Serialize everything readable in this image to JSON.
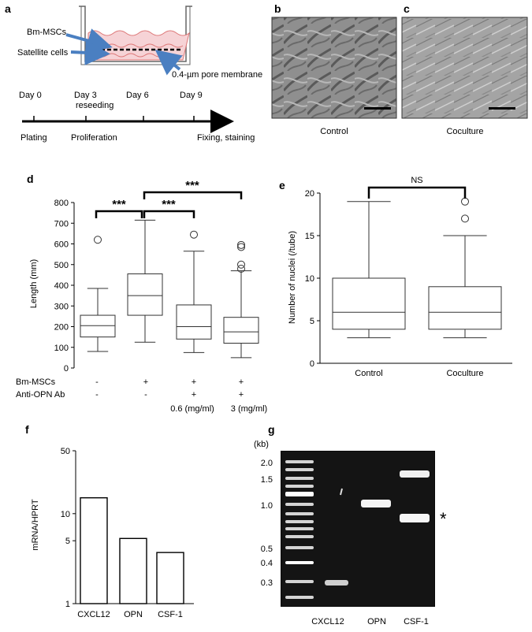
{
  "panels": {
    "a": {
      "letter": "a",
      "labels": {
        "bm_mscs": "Bm-MSCs",
        "satellite": "Satellite cells",
        "membrane": "0.4-µm pore membrane"
      },
      "timeline": {
        "days": [
          "Day 0",
          "Day 3",
          "Day 6",
          "Day 9"
        ],
        "reseeding": "reseeding",
        "stages": [
          "Plating",
          "Proliferation",
          "Fixing, staining"
        ]
      },
      "colors": {
        "medium": "#f6d3d6",
        "arrow": "#4a7fc1"
      }
    },
    "b": {
      "letter": "b",
      "caption": "Control"
    },
    "c": {
      "letter": "c",
      "caption": "Coculture"
    },
    "d": {
      "letter": "d",
      "bm_label": "Bm-MSCs",
      "ab_label": "Anti-OPN Ab",
      "bm_signs": [
        "-",
        "+",
        "+",
        "+"
      ],
      "ab_signs": [
        "-",
        "-",
        "+",
        "+"
      ],
      "doses": [
        "0.6 (mg/ml)",
        "3 (mg/ml)"
      ],
      "sig": [
        "***",
        "***",
        "***"
      ]
    },
    "e": {
      "letter": "e",
      "sig": "NS"
    },
    "f": {
      "letter": "f"
    },
    "g": {
      "letter": "g",
      "kb_label": "(kb)",
      "marker_labels": [
        "2.0",
        "1.5",
        "1.0",
        "0.5",
        "0.4",
        "0.3"
      ],
      "lanes": [
        "CXCL12",
        "OPN",
        "CSF-1"
      ],
      "star": "*"
    }
  },
  "chart_data": [
    {
      "id": "d",
      "type": "box",
      "ylabel": "Length (mm)",
      "ylim": [
        0,
        800
      ],
      "yticks": [
        0,
        100,
        200,
        300,
        400,
        500,
        600,
        700,
        800
      ],
      "series": [
        {
          "min": 80,
          "q1": 150,
          "median": 205,
          "q3": 255,
          "max": 385,
          "outliers": [
            620
          ]
        },
        {
          "min": 125,
          "q1": 255,
          "median": 350,
          "q3": 455,
          "max": 715,
          "outliers": []
        },
        {
          "min": 75,
          "q1": 140,
          "median": 200,
          "q3": 305,
          "max": 565,
          "outliers": [
            645
          ]
        },
        {
          "min": 50,
          "q1": 120,
          "median": 175,
          "q3": 245,
          "max": 470,
          "outliers": [
            480,
            500,
            585,
            595
          ]
        }
      ]
    },
    {
      "id": "e",
      "type": "box",
      "ylabel": "Number of nuclei (/tube)",
      "ylim": [
        0,
        20
      ],
      "yticks": [
        0,
        5,
        10,
        15,
        20
      ],
      "categories": [
        "Control",
        "Coculture"
      ],
      "series": [
        {
          "min": 3,
          "q1": 4,
          "median": 6,
          "q3": 10,
          "max": 19,
          "outliers": []
        },
        {
          "min": 3,
          "q1": 4,
          "median": 6,
          "q3": 9,
          "max": 15,
          "outliers": [
            17,
            19
          ]
        }
      ]
    },
    {
      "id": "f",
      "type": "bar",
      "scale": "log",
      "ylabel": "mRNA/HPRT",
      "ylim": [
        1,
        50
      ],
      "yticks": [
        1,
        5,
        10,
        50
      ],
      "categories": [
        "CXCL12",
        "OPN",
        "CSF-1"
      ],
      "values": [
        15,
        5.3,
        3.7
      ]
    }
  ]
}
